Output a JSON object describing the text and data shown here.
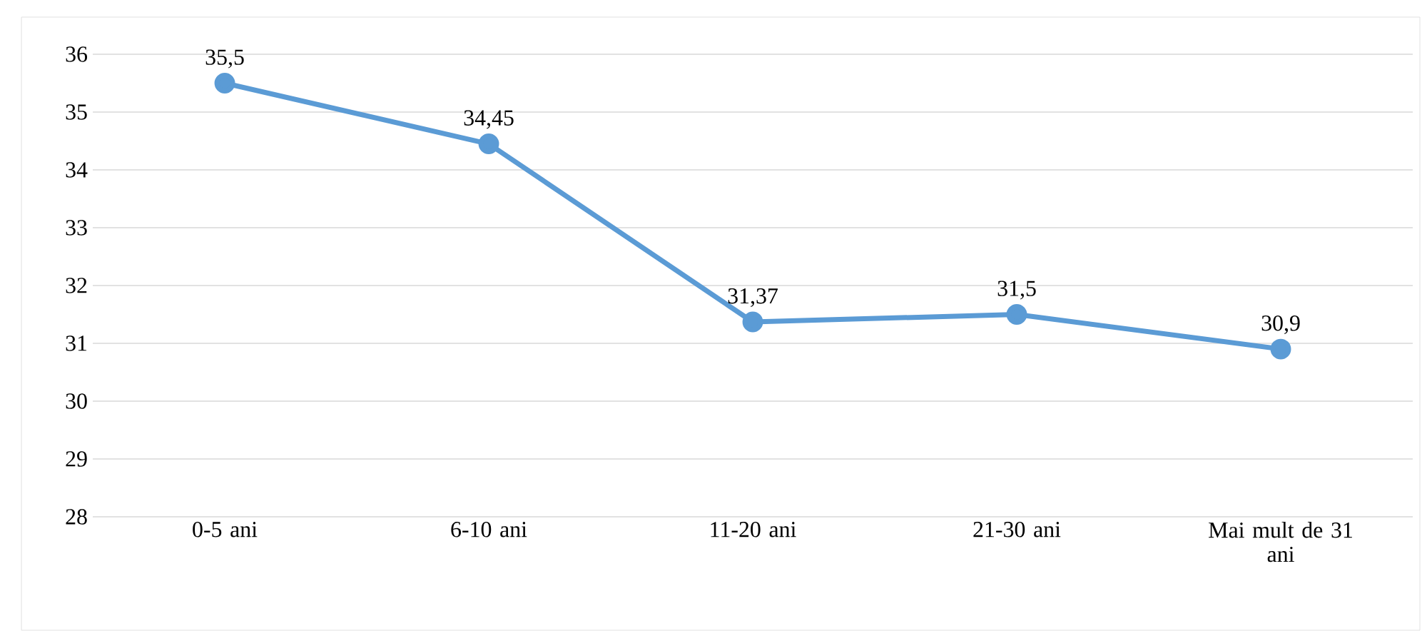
{
  "chart_data": {
    "type": "line",
    "categories": [
      "0-5 ani",
      "6-10 ani",
      "11-20 ani",
      "21-30 ani",
      "Mai mult de 31 ani"
    ],
    "series": [
      {
        "color": "#5b9bd5",
        "values": [
          35.5,
          34.45,
          31.37,
          31.5,
          30.9
        ],
        "value_labels": [
          "35,5",
          "34,45",
          "31,37",
          "31,5",
          "30,9"
        ]
      }
    ],
    "ylim": [
      28,
      36
    ],
    "yticks": [
      28,
      29,
      30,
      31,
      32,
      33,
      34,
      35,
      36
    ],
    "grid": "y",
    "marker": "circle",
    "line_style": "solid"
  }
}
